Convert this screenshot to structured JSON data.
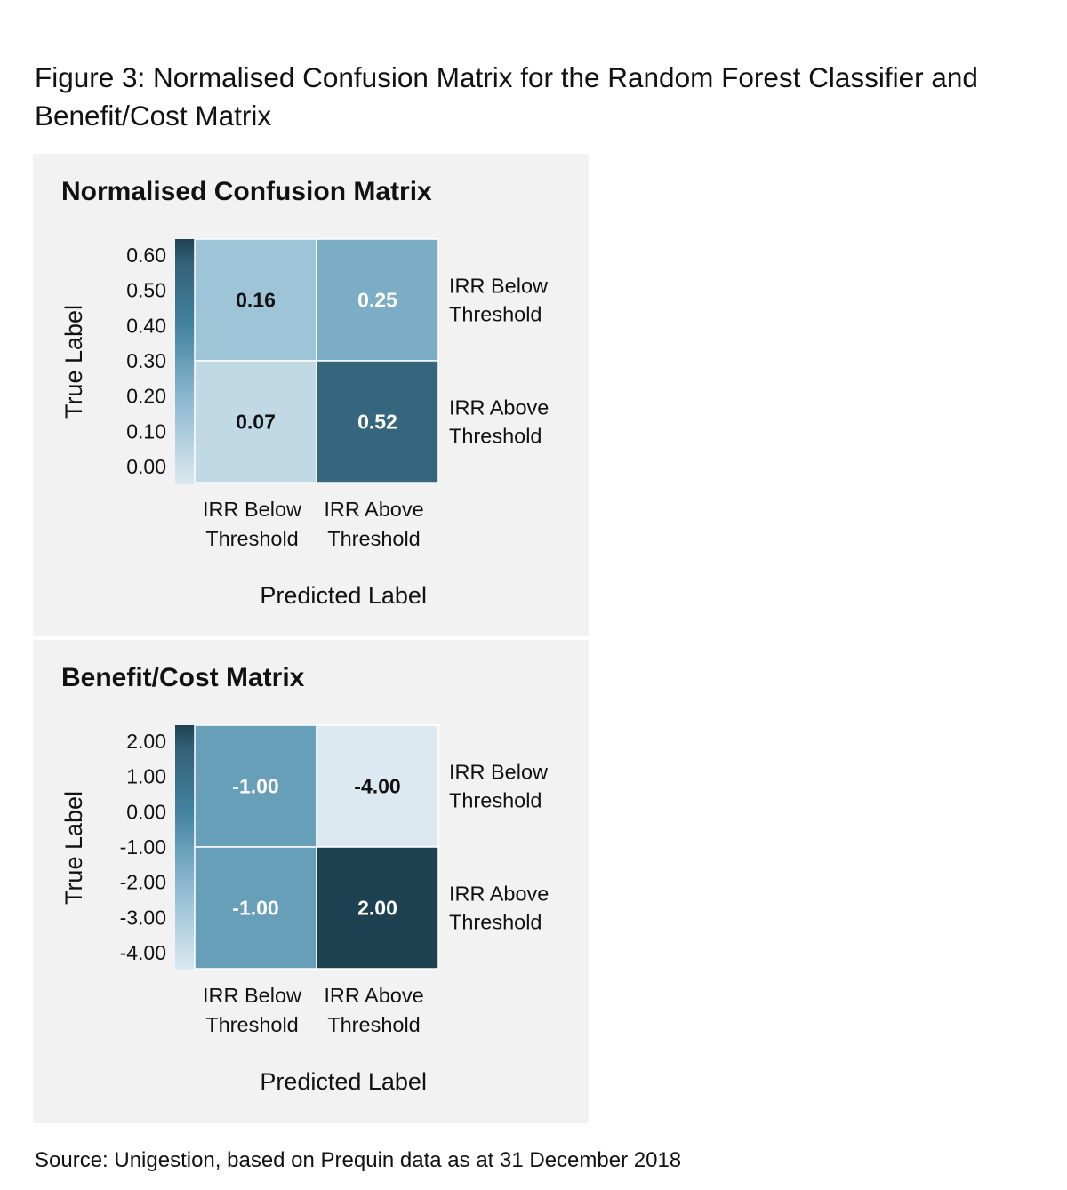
{
  "figure": {
    "title": "Figure 3: Normalised Confusion Matrix for the Random Forest Classifier and Benefit/Cost Matrix",
    "source": "Source: Unigestion, based on Prequin data as at 31 December 2018"
  },
  "colors": {
    "panel_bg": "#f2f2f2",
    "scale_light": "#dce9f0",
    "scale_dark": "#1e4152"
  },
  "chart_data": [
    {
      "type": "heatmap",
      "title": "Normalised Confusion Matrix",
      "xlabel": "Predicted Label",
      "ylabel": "True Label",
      "x_categories": [
        [
          "IRR Below",
          "Threshold"
        ],
        [
          "IRR Above",
          "Threshold"
        ]
      ],
      "y_categories": [
        [
          "IRR Below",
          "Threshold"
        ],
        [
          "IRR Above",
          "Threshold"
        ]
      ],
      "values": [
        [
          0.16,
          0.25
        ],
        [
          0.07,
          0.52
        ]
      ],
      "cell_labels": [
        [
          "0.16",
          "0.25"
        ],
        [
          "0.07",
          "0.52"
        ]
      ],
      "colorbar": {
        "range": [
          0.0,
          0.6
        ],
        "ticks": [
          0.6,
          0.5,
          0.4,
          0.3,
          0.2,
          0.1,
          0.0
        ],
        "tick_labels": [
          "0.60",
          "0.50",
          "0.40",
          "0.30",
          "0.20",
          "0.10",
          "0.00"
        ]
      }
    },
    {
      "type": "heatmap",
      "title": "Benefit/Cost Matrix",
      "xlabel": "Predicted Label",
      "ylabel": "True Label",
      "x_categories": [
        [
          "IRR Below",
          "Threshold"
        ],
        [
          "IRR Above",
          "Threshold"
        ]
      ],
      "y_categories": [
        [
          "IRR Below",
          "Threshold"
        ],
        [
          "IRR Above",
          "Threshold"
        ]
      ],
      "values": [
        [
          -1.0,
          -4.0
        ],
        [
          -1.0,
          2.0
        ]
      ],
      "cell_labels": [
        [
          "-1.00",
          "-4.00"
        ],
        [
          "-1.00",
          "2.00"
        ]
      ],
      "colorbar": {
        "range": [
          -4.0,
          2.0
        ],
        "ticks": [
          2.0,
          1.0,
          0.0,
          -1.0,
          -2.0,
          -3.0,
          -4.0
        ],
        "tick_labels": [
          "2.00",
          "1.00",
          "0.00",
          "-1.00",
          "-2.00",
          "-3.00",
          "-4.00"
        ]
      }
    }
  ]
}
